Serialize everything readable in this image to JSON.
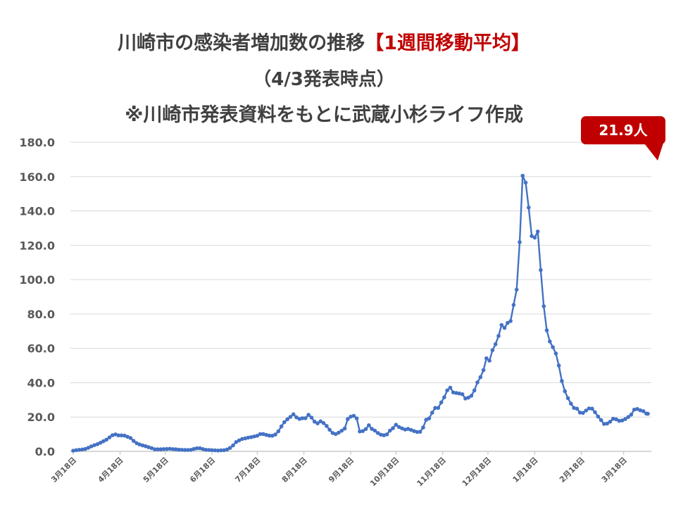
{
  "chart_data": {
    "type": "line",
    "title": "川崎市の感染者増加数の推移",
    "title_highlight": "【1週間移動平均】",
    "subtitle": "（4/3発表時点）",
    "note": "※川崎市発表資料をもとに武蔵小杉ライフ作成",
    "annotation": {
      "text": "21.9人"
    },
    "ylim": [
      0,
      180
    ],
    "yticks": [
      "0.0",
      "20.0",
      "40.0",
      "60.0",
      "80.0",
      "100.0",
      "120.0",
      "140.0",
      "160.0",
      "180.0"
    ],
    "xticks": [
      {
        "date": "2020-03-18",
        "label": "3月18日"
      },
      {
        "date": "2020-04-18",
        "label": "4月18日"
      },
      {
        "date": "2020-05-18",
        "label": "5月18日"
      },
      {
        "date": "2020-06-18",
        "label": "6月18日"
      },
      {
        "date": "2020-07-18",
        "label": "7月18日"
      },
      {
        "date": "2020-08-18",
        "label": "8月18日"
      },
      {
        "date": "2020-09-18",
        "label": "9月18日"
      },
      {
        "date": "2020-10-18",
        "label": "10月18日"
      },
      {
        "date": "2020-11-18",
        "label": "11月18日"
      },
      {
        "date": "2020-12-18",
        "label": "12月18日"
      },
      {
        "date": "2021-01-18",
        "label": "1月18日"
      },
      {
        "date": "2021-02-18",
        "label": "2月18日"
      },
      {
        "date": "2021-03-18",
        "label": "3月18日"
      }
    ],
    "grid": true,
    "legend": "none",
    "x": [
      "2020-03-18",
      "2020-03-20",
      "2020-03-22",
      "2020-03-24",
      "2020-03-26",
      "2020-03-28",
      "2020-03-30",
      "2020-04-01",
      "2020-04-03",
      "2020-04-05",
      "2020-04-07",
      "2020-04-09",
      "2020-04-11",
      "2020-04-13",
      "2020-04-15",
      "2020-04-17",
      "2020-04-19",
      "2020-04-21",
      "2020-04-23",
      "2020-04-25",
      "2020-04-27",
      "2020-04-29",
      "2020-05-01",
      "2020-05-03",
      "2020-05-05",
      "2020-05-07",
      "2020-05-09",
      "2020-05-11",
      "2020-05-13",
      "2020-05-15",
      "2020-05-17",
      "2020-05-19",
      "2020-05-21",
      "2020-05-23",
      "2020-05-25",
      "2020-05-27",
      "2020-05-29",
      "2020-05-31",
      "2020-06-02",
      "2020-06-04",
      "2020-06-06",
      "2020-06-08",
      "2020-06-10",
      "2020-06-12",
      "2020-06-14",
      "2020-06-16",
      "2020-06-18",
      "2020-06-20",
      "2020-06-22",
      "2020-06-24",
      "2020-06-26",
      "2020-06-28",
      "2020-06-30",
      "2020-07-02",
      "2020-07-04",
      "2020-07-06",
      "2020-07-08",
      "2020-07-10",
      "2020-07-12",
      "2020-07-14",
      "2020-07-16",
      "2020-07-18",
      "2020-07-20",
      "2020-07-22",
      "2020-07-24",
      "2020-07-26",
      "2020-07-28",
      "2020-07-30",
      "2020-08-01",
      "2020-08-03",
      "2020-08-05",
      "2020-08-07",
      "2020-08-09",
      "2020-08-11",
      "2020-08-13",
      "2020-08-15",
      "2020-08-17",
      "2020-08-19",
      "2020-08-21",
      "2020-08-23",
      "2020-08-25",
      "2020-08-27",
      "2020-08-29",
      "2020-08-31",
      "2020-09-02",
      "2020-09-04",
      "2020-09-06",
      "2020-09-08",
      "2020-09-10",
      "2020-09-12",
      "2020-09-14",
      "2020-09-16",
      "2020-09-18",
      "2020-09-20",
      "2020-09-22",
      "2020-09-24",
      "2020-09-26",
      "2020-09-28",
      "2020-09-30",
      "2020-10-02",
      "2020-10-04",
      "2020-10-06",
      "2020-10-08",
      "2020-10-10",
      "2020-10-12",
      "2020-10-14",
      "2020-10-16",
      "2020-10-18",
      "2020-10-20",
      "2020-10-22",
      "2020-10-24",
      "2020-10-26",
      "2020-10-28",
      "2020-10-30",
      "2020-11-01",
      "2020-11-03",
      "2020-11-05",
      "2020-11-07",
      "2020-11-09",
      "2020-11-11",
      "2020-11-13",
      "2020-11-15",
      "2020-11-17",
      "2020-11-19",
      "2020-11-21",
      "2020-11-23",
      "2020-11-25",
      "2020-11-27",
      "2020-11-29",
      "2020-12-01",
      "2020-12-03",
      "2020-12-05",
      "2020-12-07",
      "2020-12-09",
      "2020-12-11",
      "2020-12-13",
      "2020-12-15",
      "2020-12-17",
      "2020-12-19",
      "2020-12-21",
      "2020-12-23",
      "2020-12-25",
      "2020-12-27",
      "2020-12-29",
      "2020-12-31",
      "2021-01-02",
      "2021-01-04",
      "2021-01-06",
      "2021-01-08",
      "2021-01-10",
      "2021-01-12",
      "2021-01-14",
      "2021-01-16",
      "2021-01-18",
      "2021-01-20",
      "2021-01-22",
      "2021-01-24",
      "2021-01-26",
      "2021-01-28",
      "2021-01-30",
      "2021-02-01",
      "2021-02-03",
      "2021-02-05",
      "2021-02-07",
      "2021-02-09",
      "2021-02-11",
      "2021-02-13",
      "2021-02-15",
      "2021-02-17",
      "2021-02-19",
      "2021-02-21",
      "2021-02-23",
      "2021-02-25",
      "2021-02-27",
      "2021-03-01",
      "2021-03-03",
      "2021-03-05",
      "2021-03-07",
      "2021-03-09",
      "2021-03-11",
      "2021-03-13",
      "2021-03-15",
      "2021-03-17",
      "2021-03-19",
      "2021-03-21",
      "2021-03-23",
      "2021-03-25",
      "2021-03-27",
      "2021-03-29",
      "2021-03-31",
      "2021-04-02",
      "2021-04-03"
    ],
    "series": [
      {
        "color": "#4472C4",
        "values": [
          0.4,
          0.7,
          0.9,
          1.1,
          1.4,
          2.1,
          2.9,
          3.6,
          4.2,
          5.0,
          5.9,
          6.8,
          8.1,
          9.4,
          9.9,
          9.3,
          9.3,
          9.2,
          8.5,
          7.8,
          6.1,
          4.8,
          4.0,
          3.5,
          3.0,
          2.4,
          1.9,
          1.2,
          1.2,
          1.2,
          1.3,
          1.4,
          1.5,
          1.3,
          1.2,
          1.0,
          0.9,
          0.8,
          0.8,
          0.9,
          1.4,
          1.8,
          1.8,
          1.3,
          0.9,
          0.8,
          0.7,
          0.6,
          0.5,
          0.6,
          0.7,
          1.1,
          2.0,
          3.5,
          5.4,
          6.4,
          7.2,
          7.6,
          8.0,
          8.3,
          8.7,
          9.1,
          10.1,
          10.1,
          9.6,
          9.2,
          9.1,
          9.8,
          11.7,
          14.5,
          17.0,
          18.7,
          20.1,
          21.6,
          19.8,
          18.9,
          19.3,
          19.3,
          21.3,
          19.7,
          17.3,
          16.3,
          17.5,
          16.5,
          14.8,
          12.6,
          10.7,
          10.1,
          10.9,
          12.0,
          13.3,
          18.8,
          20.2,
          20.7,
          19.2,
          11.6,
          11.8,
          13.0,
          15.2,
          13.1,
          12.1,
          10.7,
          9.7,
          9.4,
          9.9,
          12.1,
          13.5,
          15.5,
          14.2,
          13.4,
          12.7,
          13.1,
          12.5,
          11.8,
          11.3,
          11.4,
          13.9,
          18.4,
          19.2,
          22.5,
          25.3,
          25.3,
          28.5,
          31.5,
          35.5,
          37.1,
          34.3,
          34.0,
          33.7,
          33.3,
          30.8,
          31.3,
          32.4,
          35.5,
          40.2,
          43.2,
          47.3,
          54.2,
          52.8,
          58.9,
          62.4,
          67.2,
          73.6,
          71.9,
          74.8,
          75.9,
          85.3,
          94.2,
          121.8,
          160.5,
          156.5,
          142.0,
          125.4,
          124.5,
          128.0,
          105.6,
          84.5,
          70.5,
          64.0,
          60.7,
          57.0,
          50.0,
          41.0,
          35.0,
          31.0,
          27.8,
          25.3,
          24.9,
          22.6,
          22.4,
          23.8,
          25.0,
          24.9,
          22.8,
          20.3,
          18.2,
          16.0,
          16.2,
          17.3,
          19.0,
          18.7,
          17.8,
          18.0,
          18.8,
          20.0,
          21.4,
          24.3,
          24.7,
          23.9,
          23.4,
          22.0,
          21.9
        ]
      }
    ],
    "colors": {
      "title": "#404040",
      "highlight": "#C00000",
      "callout": "#C00000",
      "gridline": "#D9D9D9"
    }
  }
}
